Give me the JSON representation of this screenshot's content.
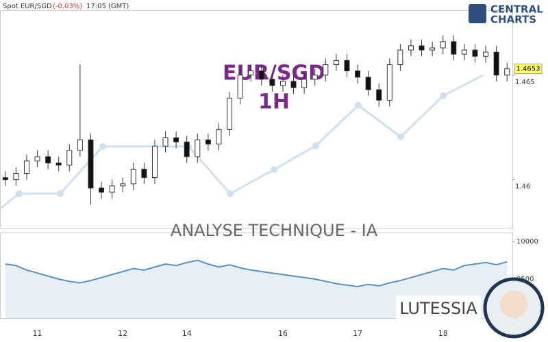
{
  "header": {
    "instrument": "Spot EUR/SGD",
    "change": "(-0.03%)",
    "time": "17:05 (GMT)"
  },
  "logo": {
    "line1": "CENTRAL",
    "line2": "CHARTS"
  },
  "watermark": {
    "symbol": "EUR/SGD",
    "timeframe": "1H",
    "banner": "ANALYSE TECHNIQUE - IA",
    "brand": "LUTESSIA"
  },
  "chart_data": [
    {
      "type": "candlestick",
      "categories": [
        null,
        null,
        null,
        "11",
        null,
        null,
        null,
        null,
        null,
        null,
        null,
        "12",
        null,
        null,
        null,
        null,
        null,
        "14",
        null,
        null,
        null,
        null,
        null,
        null,
        null,
        null,
        "16",
        null,
        null,
        null,
        null,
        null,
        null,
        "17",
        null,
        null,
        null,
        null,
        null,
        null,
        null,
        "18",
        null,
        null,
        null,
        null,
        null,
        null
      ],
      "open": [
        1.4601,
        1.46,
        1.4603,
        1.4609,
        1.4611,
        1.4608,
        1.4607,
        1.4614,
        1.4619,
        1.4596,
        1.4594,
        1.4597,
        1.4598,
        1.4605,
        1.4601,
        1.4616,
        1.462,
        1.4618,
        1.4611,
        1.4619,
        1.4617,
        1.4624,
        1.4639,
        1.465,
        1.4652,
        1.4648,
        1.4645,
        1.4647,
        1.4644,
        1.4648,
        1.465,
        1.4655,
        1.4657,
        1.4652,
        1.4649,
        1.4643,
        1.4638,
        1.4655,
        1.4662,
        1.4664,
        1.4662,
        1.4663,
        1.4666,
        1.466,
        1.4662,
        1.4659,
        1.4661,
        1.465
      ],
      "high": [
        1.4604,
        1.4606,
        1.4612,
        1.4614,
        1.4614,
        1.4611,
        1.4617,
        1.4655,
        1.4622,
        1.4599,
        1.46,
        1.4601,
        1.4608,
        1.4608,
        1.4619,
        1.4623,
        1.4623,
        1.4621,
        1.4622,
        1.4622,
        1.4627,
        1.4642,
        1.4653,
        1.4655,
        1.4655,
        1.4651,
        1.465,
        1.465,
        1.4651,
        1.4653,
        1.4658,
        1.466,
        1.466,
        1.4655,
        1.4652,
        1.4646,
        1.4658,
        1.4665,
        1.4667,
        1.4667,
        1.4666,
        1.4669,
        1.4669,
        1.4665,
        1.4665,
        1.4664,
        1.4664,
        1.4656
      ],
      "low": [
        1.4597,
        1.4597,
        1.46,
        1.4606,
        1.4605,
        1.4604,
        1.4604,
        1.4611,
        1.4588,
        1.4591,
        1.4591,
        1.4594,
        1.4595,
        1.4598,
        1.4598,
        1.4613,
        1.4615,
        1.4608,
        1.4608,
        1.4614,
        1.4614,
        1.4621,
        1.4636,
        1.4647,
        1.4645,
        1.4642,
        1.4642,
        1.4641,
        1.4641,
        1.4645,
        1.4647,
        1.4652,
        1.4649,
        1.4646,
        1.464,
        1.4635,
        1.4635,
        1.4652,
        1.4659,
        1.4659,
        1.4659,
        1.466,
        1.4657,
        1.4657,
        1.4656,
        1.4656,
        1.4647,
        1.4647
      ],
      "close": [
        1.46,
        1.4603,
        1.4609,
        1.4611,
        1.4608,
        1.4607,
        1.4614,
        1.4619,
        1.4596,
        1.4594,
        1.4597,
        1.4598,
        1.4605,
        1.4601,
        1.4616,
        1.462,
        1.4618,
        1.4611,
        1.4619,
        1.4617,
        1.4624,
        1.4639,
        1.465,
        1.4652,
        1.4648,
        1.4645,
        1.4647,
        1.4644,
        1.4648,
        1.465,
        1.4655,
        1.4657,
        1.4652,
        1.4649,
        1.4643,
        1.4638,
        1.4655,
        1.4662,
        1.4664,
        1.4662,
        1.4663,
        1.4666,
        1.466,
        1.4662,
        1.4659,
        1.4661,
        1.465,
        1.4653
      ],
      "up_color": "#ffffff",
      "down_color": "#111111",
      "wick_color": "#333333",
      "ylim": [
        1.4577,
        1.4681
      ],
      "yticks": [
        1.46,
        1.465
      ],
      "price_tag": "1.4653",
      "price_tag_color": "#ffff66"
    },
    {
      "type": "line",
      "values": [
        9700,
        9680,
        9620,
        9580,
        9540,
        9500,
        9470,
        9450,
        9480,
        9520,
        9560,
        9600,
        9640,
        9620,
        9660,
        9700,
        9680,
        9720,
        9750,
        9700,
        9660,
        9690,
        9650,
        9620,
        9600,
        9580,
        9560,
        9540,
        9520,
        9500,
        9470,
        9440,
        9420,
        9400,
        9430,
        9410,
        9450,
        9480,
        9520,
        9560,
        9600,
        9640,
        9620,
        9680,
        9700,
        9720,
        9690,
        9730
      ],
      "color": "#5a8fc2",
      "ylim": [
        8982,
        10118
      ],
      "yticks": [
        10000,
        9500
      ]
    }
  ]
}
